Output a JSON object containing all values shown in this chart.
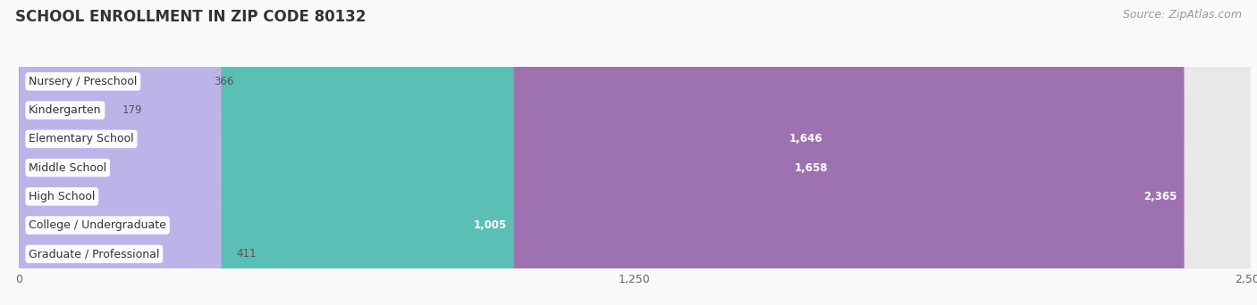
{
  "title": "SCHOOL ENROLLMENT IN ZIP CODE 80132",
  "source": "Source: ZipAtlas.com",
  "categories": [
    "Nursery / Preschool",
    "Kindergarten",
    "Elementary School",
    "Middle School",
    "High School",
    "College / Undergraduate",
    "Graduate / Professional"
  ],
  "values": [
    366,
    179,
    1646,
    1658,
    2365,
    1005,
    411
  ],
  "bar_colors": [
    "#f5afc0",
    "#f9cc95",
    "#e8887e",
    "#87afd6",
    "#9e72b0",
    "#5bbfb5",
    "#bcb3e8"
  ],
  "bar_bg_color": "#e8e8e8",
  "row_bg_color": "#f0f0f0",
  "background_color": "#f9f9f9",
  "xlim": [
    0,
    2500
  ],
  "xticks": [
    0,
    1250,
    2500
  ],
  "title_fontsize": 12,
  "label_fontsize": 9,
  "value_fontsize": 8.5,
  "source_fontsize": 9
}
